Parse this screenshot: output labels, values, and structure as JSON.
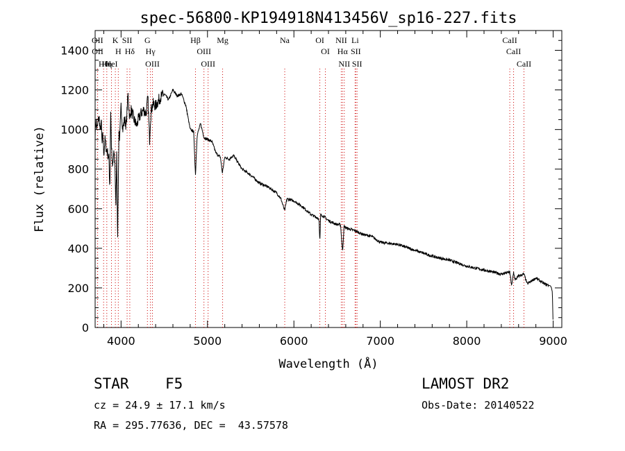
{
  "chart_data": {
    "type": "line",
    "title": "spec-56800-KP194918N413456V_sp16-227.fits",
    "xlabel": "Wavelength (Å)",
    "ylabel": "Flux (relative)",
    "xlim": [
      3700,
      9100
    ],
    "ylim": [
      0,
      1500
    ],
    "xticks": [
      4000,
      5000,
      6000,
      7000,
      8000,
      9000
    ],
    "yticks": [
      0,
      200,
      400,
      600,
      800,
      1000,
      1200,
      1400
    ],
    "grid": false,
    "line_color": "#000000",
    "marker_color": "#cc0000",
    "spectrum": {
      "x": [
        3700,
        3710,
        3720,
        3730,
        3740,
        3750,
        3760,
        3770,
        3780,
        3790,
        3800,
        3815,
        3830,
        3845,
        3860,
        3870,
        3880,
        3890,
        3900,
        3910,
        3920,
        3930,
        3940,
        3950,
        3960,
        3968,
        3975,
        3985,
        4000,
        4020,
        4040,
        4060,
        4080,
        4101,
        4115,
        4130,
        4150,
        4180,
        4200,
        4230,
        4260,
        4290,
        4310,
        4330,
        4340,
        4350,
        4370,
        4400,
        4450,
        4500,
        4550,
        4600,
        4650,
        4700,
        4750,
        4800,
        4840,
        4861,
        4880,
        4920,
        4960,
        5000,
        5050,
        5100,
        5150,
        5172,
        5200,
        5250,
        5300,
        5400,
        5500,
        5600,
        5700,
        5800,
        5850,
        5893,
        5920,
        6000,
        6100,
        6200,
        6290,
        6300,
        6310,
        6350,
        6400,
        6450,
        6500,
        6540,
        6563,
        6580,
        6620,
        6700,
        6800,
        6900,
        7000,
        7200,
        7400,
        7600,
        7800,
        8000,
        8200,
        8400,
        8498,
        8520,
        8542,
        8560,
        8600,
        8662,
        8700,
        8800,
        8900,
        8970,
        8980,
        8990,
        8995,
        9000
      ],
      "y": [
        980,
        1050,
        1000,
        1020,
        1060,
        1050,
        980,
        1050,
        920,
        980,
        880,
        950,
        900,
        880,
        850,
        700,
        1100,
        900,
        800,
        850,
        880,
        820,
        600,
        900,
        450,
        700,
        1000,
        950,
        1120,
        1000,
        1050,
        1020,
        1180,
        1050,
        1100,
        1080,
        1050,
        1020,
        1050,
        1080,
        1100,
        1080,
        1160,
        950,
        1050,
        1100,
        1130,
        1120,
        1160,
        1180,
        1150,
        1200,
        1170,
        1180,
        1120,
        1000,
        990,
        770,
        970,
        1030,
        960,
        950,
        940,
        880,
        860,
        780,
        860,
        850,
        870,
        800,
        770,
        730,
        710,
        680,
        650,
        590,
        650,
        640,
        610,
        570,
        550,
        430,
        570,
        560,
        540,
        530,
        520,
        520,
        380,
        510,
        500,
        490,
        470,
        460,
        430,
        420,
        390,
        360,
        340,
        310,
        290,
        270,
        280,
        210,
        280,
        240,
        260,
        270,
        220,
        250,
        220,
        210,
        200,
        180,
        100,
        0
      ]
    },
    "line_markers": [
      {
        "label": "Hθ",
        "x": 3798
      },
      {
        "label": "OII",
        "x": 3727
      },
      {
        "label": "OII",
        "x": 3729
      },
      {
        "label": "Hη",
        "x": 3835
      },
      {
        "label": "HeI",
        "x": 3889
      },
      {
        "label": "K",
        "x": 3934
      },
      {
        "label": "H",
        "x": 3968
      },
      {
        "label": "SII",
        "x": 4070
      },
      {
        "label": "Hδ",
        "x": 4101
      },
      {
        "label": "G",
        "x": 4305
      },
      {
        "label": "Hγ",
        "x": 4340
      },
      {
        "label": "OIII",
        "x": 4363
      },
      {
        "label": "Hβ",
        "x": 4861
      },
      {
        "label": "OIII",
        "x": 4959
      },
      {
        "label": "OIII",
        "x": 5007
      },
      {
        "label": "Mg",
        "x": 5175
      },
      {
        "label": "Na",
        "x": 5894
      },
      {
        "label": "OI",
        "x": 6300
      },
      {
        "label": "OI",
        "x": 6364
      },
      {
        "label": "NII",
        "x": 6548
      },
      {
        "label": "Hα",
        "x": 6563
      },
      {
        "label": "NII",
        "x": 6583
      },
      {
        "label": "Li",
        "x": 6708
      },
      {
        "label": "SII",
        "x": 6716
      },
      {
        "label": "SII",
        "x": 6731
      },
      {
        "label": "CaII",
        "x": 8498
      },
      {
        "label": "CaII",
        "x": 8542
      },
      {
        "label": "CaII",
        "x": 8662
      }
    ]
  },
  "info": {
    "object_class": "STAR",
    "subclass": "F5",
    "survey": "LAMOST DR2",
    "cz": "cz = 24.9 ± 17.1 km/s",
    "obs_date": "Obs-Date: 20140522",
    "coords": "RA = 295.77636, DEC =  43.57578"
  }
}
